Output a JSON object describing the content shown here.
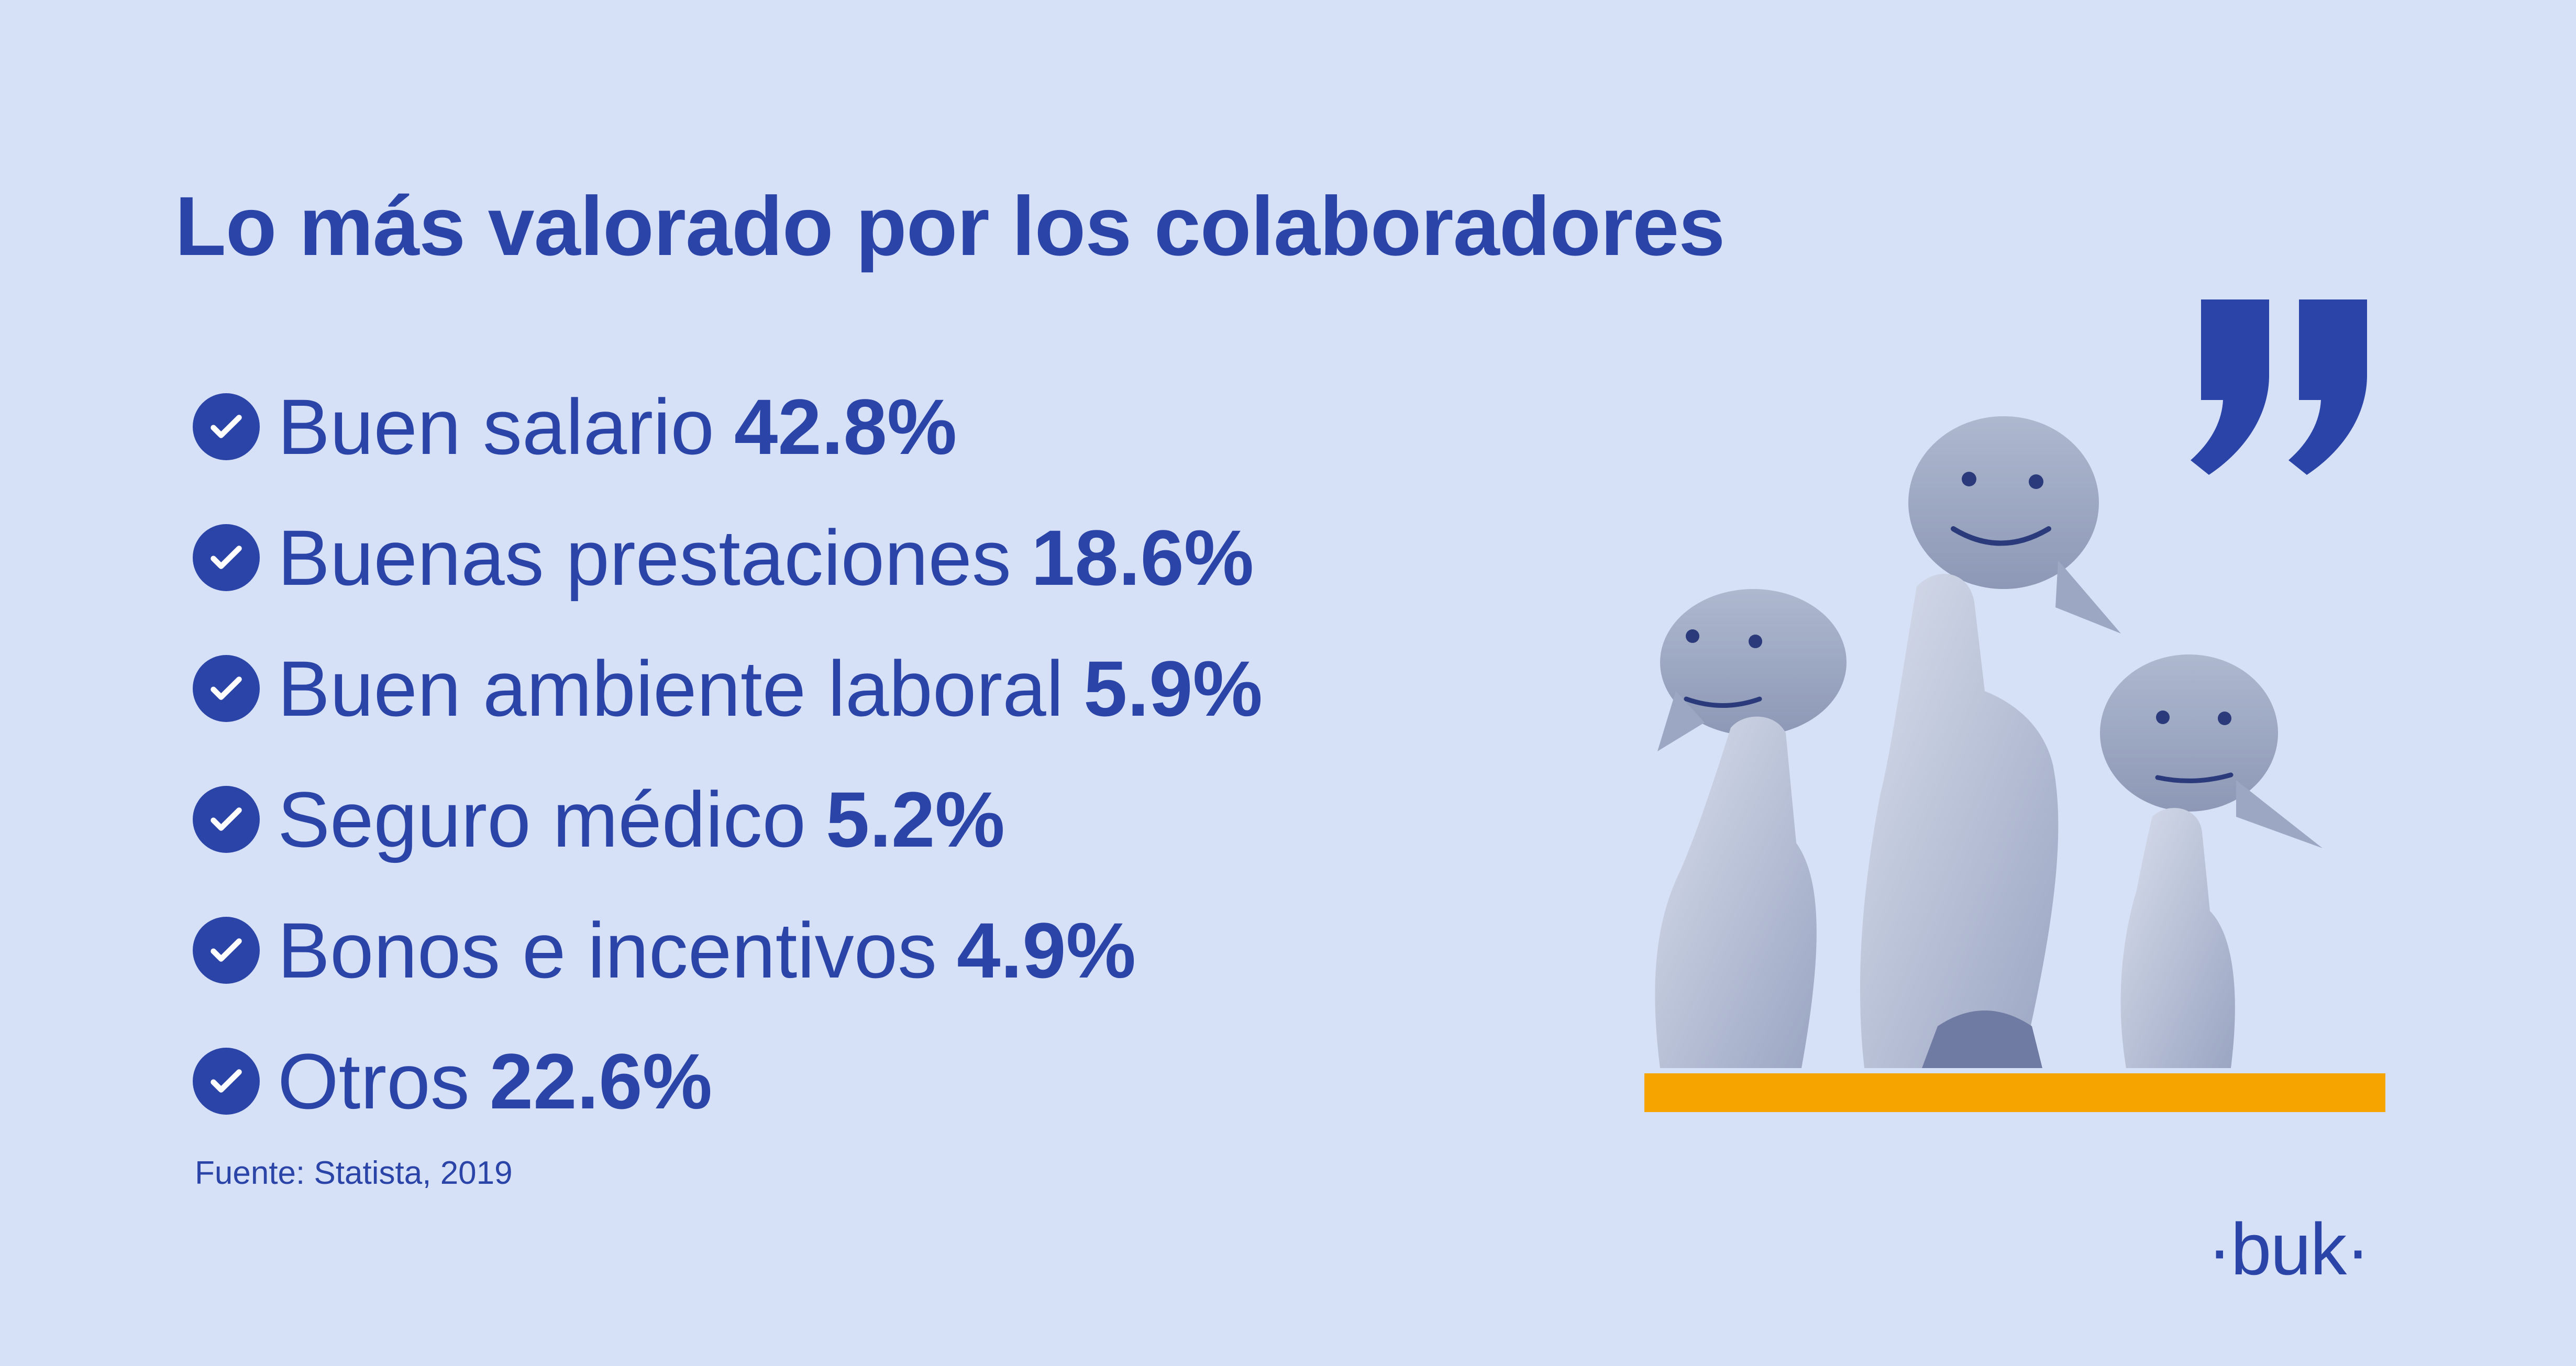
{
  "title": "Lo más valorado por los colaboradores",
  "items": [
    {
      "label": "Buen salario",
      "value": "42.8%"
    },
    {
      "label": "Buenas prestaciones",
      "value": "18.6%"
    },
    {
      "label": "Buen ambiente laboral",
      "value": "5.9%"
    },
    {
      "label": "Seguro médico",
      "value": "5.2%"
    },
    {
      "label": "Bonos e incentivos",
      "value": "4.9%"
    },
    {
      "label": "Otros",
      "value": "22.6%"
    }
  ],
  "source": "Fuente: Statista, 2019",
  "logo": "·buk·",
  "colors": {
    "background": "#d6e0f6",
    "primary": "#2b44a8",
    "accent_bar": "#f5a400"
  },
  "icons": [
    "check-circle-icon",
    "quote-mark-icon"
  ]
}
